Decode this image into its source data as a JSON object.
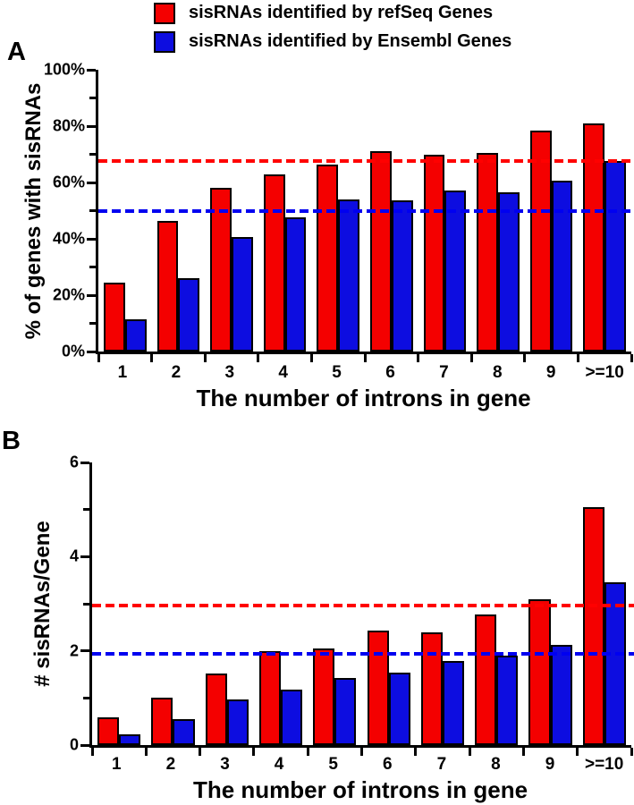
{
  "legend": {
    "items": [
      {
        "key": "refseq",
        "label": "sisRNAs identified by refSeq Genes",
        "color": "#f40000"
      },
      {
        "key": "ensembl",
        "label": "sisRNAs identified by Ensembl Genes",
        "color": "#0d0de0"
      }
    ]
  },
  "colors": {
    "bar_red": "#f40000",
    "bar_blue": "#0d0de0",
    "dash_red": "#ff0000",
    "dash_blue": "#0000f0",
    "axis": "#000000"
  },
  "chart_data": [
    {
      "id": "A",
      "type": "bar",
      "panel_label": "A",
      "xlabel": "The number of introns in gene",
      "ylabel": "% of genes with sisRNAs",
      "categories": [
        "1",
        "2",
        "3",
        "4",
        "5",
        "6",
        "7",
        "8",
        "9",
        ">=10"
      ],
      "series": [
        {
          "key": "refseq",
          "name": "sisRNAs identified by refSeq Genes",
          "color": "#f40000",
          "values": [
            24.5,
            46.5,
            58,
            63,
            66.5,
            71,
            70,
            70.5,
            78.5,
            81
          ]
        },
        {
          "key": "ensembl",
          "name": "sisRNAs identified by Ensembl Genes",
          "color": "#0d0de0",
          "values": [
            11.5,
            26,
            40.5,
            47.5,
            54,
            53.5,
            57,
            56.5,
            60.5,
            67.5
          ]
        }
      ],
      "ylim": [
        0,
        100
      ],
      "grid": false,
      "legend_position": "top",
      "y_major_ticks": [
        {
          "value": 0,
          "label": "0%"
        },
        {
          "value": 20,
          "label": "20%"
        },
        {
          "value": 40,
          "label": "40%"
        },
        {
          "value": 60,
          "label": "60%"
        },
        {
          "value": 80,
          "label": "80%"
        },
        {
          "value": 100,
          "label": "100%"
        }
      ],
      "y_minor_ticks": [
        10,
        30,
        50,
        70,
        90
      ],
      "reference_lines": [
        {
          "name": "refseq-average-line",
          "value": 67.5,
          "color": "#ff0000",
          "style": "dashed"
        },
        {
          "name": "ensembl-average-line",
          "value": 50,
          "color": "#0000f0",
          "style": "dashed"
        }
      ]
    },
    {
      "id": "B",
      "type": "bar",
      "panel_label": "B",
      "xlabel": "The number of introns in gene",
      "ylabel": "# sisRNAs/Gene",
      "categories": [
        "1",
        "2",
        "3",
        "4",
        "5",
        "6",
        "7",
        "8",
        "9",
        ">=10"
      ],
      "series": [
        {
          "key": "refseq",
          "name": "sisRNAs identified by refSeq Genes",
          "color": "#f40000",
          "values": [
            0.58,
            1.0,
            1.52,
            2.0,
            2.05,
            2.43,
            2.4,
            2.78,
            3.1,
            5.05
          ]
        },
        {
          "key": "ensembl",
          "name": "sisRNAs identified by Ensembl Genes",
          "color": "#0d0de0",
          "values": [
            0.23,
            0.55,
            0.96,
            1.17,
            1.43,
            1.54,
            1.78,
            1.9,
            2.13,
            3.45
          ]
        }
      ],
      "ylim": [
        0,
        6
      ],
      "grid": false,
      "legend_position": "top",
      "y_major_ticks": [
        {
          "value": 0,
          "label": "0"
        },
        {
          "value": 2,
          "label": "2"
        },
        {
          "value": 4,
          "label": "4"
        },
        {
          "value": 6,
          "label": "6"
        }
      ],
      "y_minor_ticks": [
        1,
        3,
        5
      ],
      "reference_lines": [
        {
          "name": "refseq-average-line",
          "value": 2.97,
          "color": "#ff0000",
          "style": "dashed"
        },
        {
          "name": "ensembl-average-line",
          "value": 1.93,
          "color": "#0000f0",
          "style": "dashed"
        }
      ]
    }
  ]
}
